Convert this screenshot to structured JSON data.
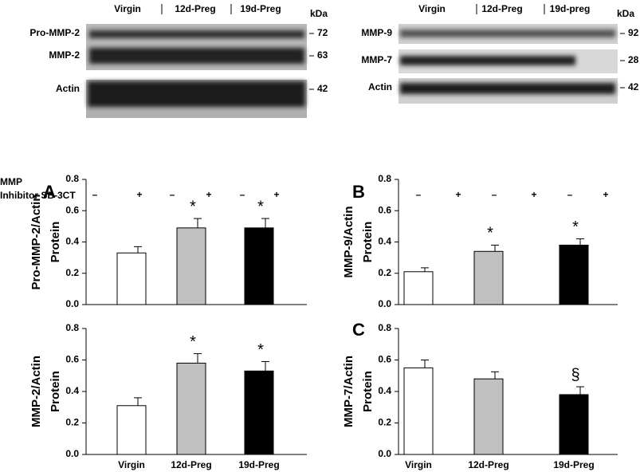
{
  "blots": [
    {
      "lanes": [
        "Virgin",
        "12d-Preg",
        "19d-Preg"
      ],
      "unit": "kDa",
      "rows": [
        {
          "label": "Pro-MMP-2",
          "kda": 72
        },
        {
          "label": "MMP-2",
          "kda": 63
        },
        {
          "label": "Actin",
          "kda": 42
        }
      ],
      "treatment": [
        "MMP",
        "Inhibitor SB-3CT"
      ],
      "signs": [
        "–",
        "+",
        "–",
        "+",
        "–",
        "+"
      ]
    },
    {
      "lanes": [
        "Virgin",
        "12d-Preg",
        "19d-preg"
      ],
      "unit": "kDa",
      "rows": [
        {
          "label": "MMP-9",
          "kda": 92
        },
        {
          "label": "MMP-7",
          "kda": 28
        },
        {
          "label": "Actin",
          "kda": 42
        }
      ],
      "signs": [
        "–",
        "+",
        "–",
        "+",
        "–",
        "+"
      ]
    }
  ],
  "chart_data": [
    {
      "type": "bar",
      "panel": "A",
      "ylabel": [
        "Pro-MMP-2/Actin",
        "Protein"
      ],
      "categories": [
        null,
        null,
        null
      ],
      "values": [
        0.33,
        0.49,
        0.49
      ],
      "errors": [
        0.04,
        0.06,
        0.06
      ],
      "annotations": [
        null,
        "*",
        "*"
      ],
      "colors": [
        "#ffffff",
        "#c0c0c0",
        "#000000"
      ],
      "ylim": [
        0,
        0.8
      ],
      "yticks": [
        {
          "value": 0,
          "label": "0.0"
        },
        0.2,
        0.4,
        0.6,
        0.8
      ]
    },
    {
      "type": "bar",
      "ylabel": [
        "MMP-2/Actin",
        "Protein"
      ],
      "categories": [
        "Virgin",
        "12d-Preg",
        "19d-Preg"
      ],
      "values": [
        0.31,
        0.58,
        0.53
      ],
      "errors": [
        0.05,
        0.06,
        0.06
      ],
      "annotations": [
        null,
        "*",
        "*"
      ],
      "colors": [
        "#ffffff",
        "#c0c0c0",
        "#000000"
      ],
      "ylim": [
        0,
        0.8
      ],
      "yticks": [
        {
          "value": 0,
          "label": "0.0"
        },
        0.2,
        0.4,
        0.6,
        0.8
      ]
    },
    {
      "type": "bar",
      "panel": "B",
      "ylabel": [
        "MMP-9/Actin",
        "Protein"
      ],
      "categories": [
        null,
        null,
        null
      ],
      "values": [
        0.21,
        0.34,
        0.38
      ],
      "errors": [
        0.025,
        0.04,
        0.04
      ],
      "annotations": [
        null,
        "*",
        "*"
      ],
      "colors": [
        "#ffffff",
        "#c0c0c0",
        "#000000"
      ],
      "ylim": [
        0,
        0.8
      ],
      "yticks": [
        {
          "value": 0,
          "label": "0.0"
        },
        0.2,
        0.4,
        0.6,
        0.8
      ]
    },
    {
      "type": "bar",
      "panel": "C",
      "ylabel": [
        "MMP-7/Actin",
        "Protein"
      ],
      "categories": [
        "Virgin",
        "12d-Preg",
        "19d-Preg"
      ],
      "values": [
        0.55,
        0.48,
        0.38
      ],
      "errors": [
        0.05,
        0.045,
        0.05
      ],
      "annotations": [
        null,
        null,
        "§"
      ],
      "colors": [
        "#ffffff",
        "#c0c0c0",
        "#000000"
      ],
      "ylim": [
        0,
        0.8
      ],
      "yticks": [
        {
          "value": 0,
          "label": "0.0"
        },
        0.2,
        0.4,
        0.6,
        0.8
      ]
    }
  ]
}
